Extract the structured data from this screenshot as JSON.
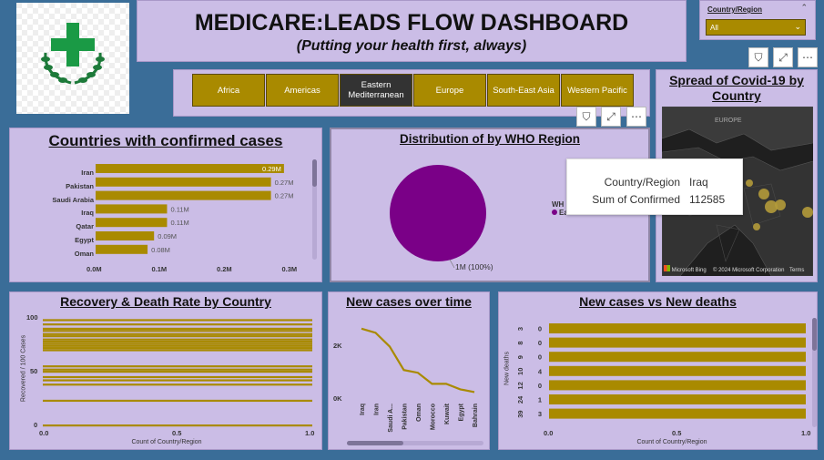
{
  "header": {
    "title": "MEDICARE:LEADS FLOW DASHBOARD",
    "subtitle": "(Putting your health first, always)"
  },
  "slicer": {
    "label": "Country/Region",
    "value": "All"
  },
  "regions": [
    {
      "label": "Africa",
      "selected": false
    },
    {
      "label": "Americas",
      "selected": false
    },
    {
      "label": "Eastern Mediterranean",
      "selected": true
    },
    {
      "label": "Europe",
      "selected": false
    },
    {
      "label": "South-East Asia",
      "selected": false
    },
    {
      "label": "Western Pacific",
      "selected": false
    }
  ],
  "map": {
    "title": "Spread of Covid-19 by Country",
    "region_label": "EUROPE",
    "attribution": "Microsoft Bing",
    "copyright": "© 2024 Microsoft Corporation",
    "terms": "Terms"
  },
  "tooltip": {
    "rows": [
      {
        "label": "Country/Region",
        "value": "Iraq"
      },
      {
        "label": "Sum of Confirmed",
        "value": "112585"
      }
    ]
  },
  "confirmed": {
    "title": "Countries with confirmed cases",
    "chart_data": {
      "type": "bar",
      "orientation": "horizontal",
      "categories": [
        "Iran",
        "Pakistan",
        "Saudi Arabia",
        "Iraq",
        "Qatar",
        "Egypt",
        "Oman"
      ],
      "values": [
        0.29,
        0.27,
        0.27,
        0.11,
        0.11,
        0.09,
        0.08
      ],
      "data_labels": [
        "0.29M",
        "0.27M",
        "0.27M",
        "0.11M",
        "0.11M",
        "0.09M",
        "0.08M"
      ],
      "xticks": [
        "0.0M",
        "0.1M",
        "0.2M",
        "0.3M"
      ],
      "xlim": [
        0,
        0.3
      ],
      "color": "#a98a00"
    }
  },
  "pie": {
    "title": "Distribution of by WHO Region",
    "legend_title": "WH",
    "legend_item": "Ea",
    "chart_data": {
      "type": "pie",
      "slices": [
        {
          "label": "Eastern Mediterranean",
          "value": 1,
          "label_text": "1M (100%)"
        }
      ],
      "color": "#7a0087"
    }
  },
  "recovery": {
    "title": "Recovery & Death Rate by Country",
    "ylabel": "Recovered / 100 Cases",
    "xlabel": "Count of Country/Region",
    "yticks": [
      "100",
      "50",
      "0"
    ],
    "xticks": [
      "0.0",
      "0.5",
      "1.0"
    ],
    "chart_data": {
      "type": "bar",
      "ylim": [
        0,
        100
      ],
      "xlim": [
        0,
        1
      ],
      "series_values": [
        98,
        94,
        90,
        88,
        85,
        83,
        80,
        78,
        76,
        74,
        72,
        70,
        55,
        52,
        50,
        45,
        42,
        38,
        23,
        0
      ]
    }
  },
  "newcases": {
    "title": "New cases over time",
    "yticks": [
      "2K",
      "0K"
    ],
    "chart_data": {
      "type": "line",
      "categories": [
        "Iraq",
        "Iran",
        "Saudi A...",
        "Pakistan",
        "Oman",
        "Morocco",
        "Kuwait",
        "Egypt",
        "Bahrain"
      ],
      "values": [
        2.55,
        2.4,
        1.9,
        1.05,
        0.95,
        0.55,
        0.55,
        0.35,
        0.25
      ],
      "ylim": [
        0,
        3
      ]
    }
  },
  "newdeaths": {
    "title": "New cases vs New deaths",
    "ylabel": "New deaths",
    "xlabel": "Count of Country/Region",
    "xticks": [
      "0.0",
      "0.5",
      "1.0"
    ],
    "categories": [
      "3",
      "8",
      "9",
      "10",
      "12",
      "24",
      "39"
    ],
    "data_labels": [
      "0",
      "0",
      "0",
      "4",
      "0",
      "1",
      "3"
    ],
    "chart_data": {
      "type": "bar",
      "orientation": "horizontal",
      "categories": [
        "3",
        "8",
        "9",
        "10",
        "12",
        "24",
        "39"
      ],
      "values": [
        1,
        1,
        1,
        1,
        1,
        1,
        1
      ],
      "xlim": [
        0,
        1
      ]
    }
  }
}
